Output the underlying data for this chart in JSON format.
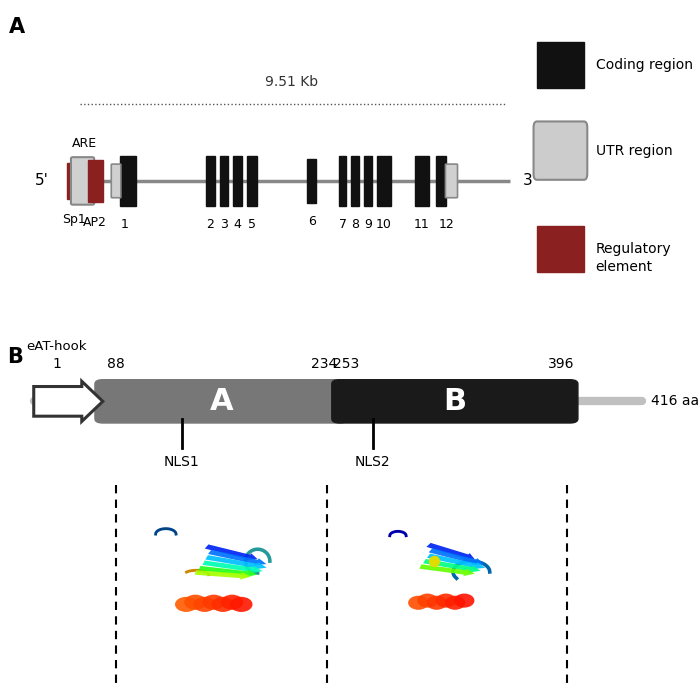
{
  "panel_A_label": "A",
  "panel_B_label": "B",
  "scale_text": "9.51 Kb",
  "five_prime": "5'",
  "three_prime": "3'",
  "regulatory_color": "#8B2020",
  "utr_color": "#cccccc",
  "coding_color": "#111111",
  "protein_A_color": "#777777",
  "protein_B_color": "#1a1a1a",
  "protein_line_color": "#bbbbbb",
  "background_color": "#ffffff",
  "legend_coding_color": "#111111",
  "legend_utr_facecolor": "#cccccc",
  "legend_utr_edgecolor": "#888888",
  "legend_reg_color": "#8B2020"
}
